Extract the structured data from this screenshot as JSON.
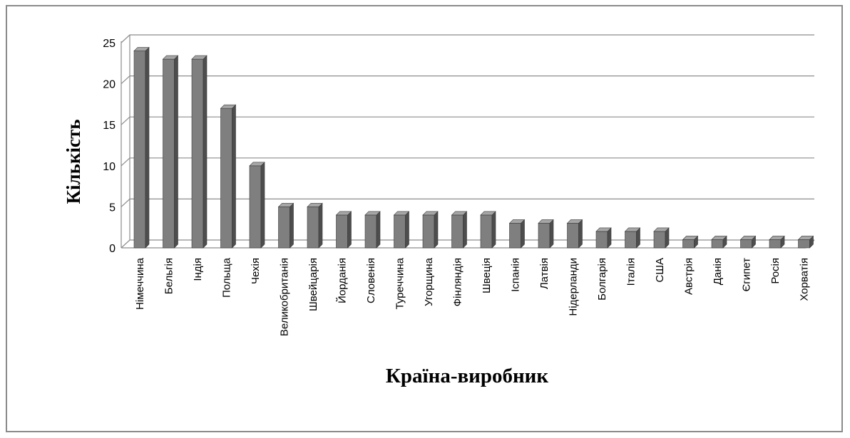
{
  "chart_data": {
    "type": "bar",
    "style": "3d-columns",
    "categories": [
      "Німеччина",
      "Бельгія",
      "Індія",
      "Польща",
      "Чехія",
      "Великобританія",
      "Швейцарія",
      "Йорданія",
      "Словенія",
      "Туреччина",
      "Угорщина",
      "Фінляндія",
      "Швеція",
      "Іспанія",
      "Латвія",
      "Нідерланди",
      "Болгарія",
      "Італія",
      "США",
      "Австрія",
      "Данія",
      "Єгипет",
      "Росія",
      "Хорватія"
    ],
    "values": [
      24,
      23,
      23,
      17,
      10,
      5,
      5,
      4,
      4,
      4,
      4,
      4,
      4,
      3,
      3,
      3,
      2,
      2,
      2,
      1,
      1,
      1,
      1,
      1
    ],
    "title": "",
    "xlabel": "Країна-виробник",
    "ylabel": "Кількість",
    "ylim": [
      0,
      25
    ],
    "yticks": [
      "0",
      "5",
      "10",
      "15",
      "20",
      "25"
    ],
    "grid": true,
    "legend": "none",
    "colors": {
      "bar_front": "#7f7f7f",
      "bar_side": "#4d4d4d",
      "bar_top": "#a6a6a6",
      "grid": "#8c8c8c",
      "frame": "#8a8a8a"
    }
  }
}
